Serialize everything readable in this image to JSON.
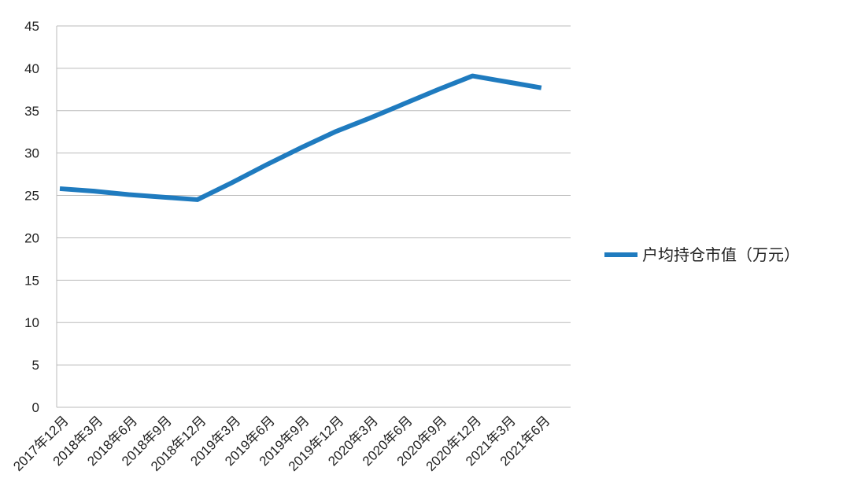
{
  "chart_data": {
    "type": "line",
    "categories": [
      "2017年12月",
      "2018年3月",
      "2018年6月",
      "2018年9月",
      "2018年12月",
      "2019年3月",
      "2019年6月",
      "2019年9月",
      "2019年12月",
      "2020年3月",
      "2020年6月",
      "2020年9月",
      "2020年12月",
      "2021年3月",
      "2021年6月"
    ],
    "series": [
      {
        "name": "户均持仓市值（万元）",
        "color": "#1f7bbf",
        "values": [
          25.8,
          25.5,
          25.1,
          24.8,
          24.5,
          26.5,
          28.6,
          30.6,
          32.5,
          34.1,
          35.8,
          37.5,
          39.1,
          38.4,
          37.7
        ]
      }
    ],
    "ylim": [
      0,
      45
    ],
    "yticks": [
      0,
      5,
      10,
      15,
      20,
      25,
      30,
      35,
      40,
      45
    ],
    "grid": true,
    "legend": "right"
  }
}
